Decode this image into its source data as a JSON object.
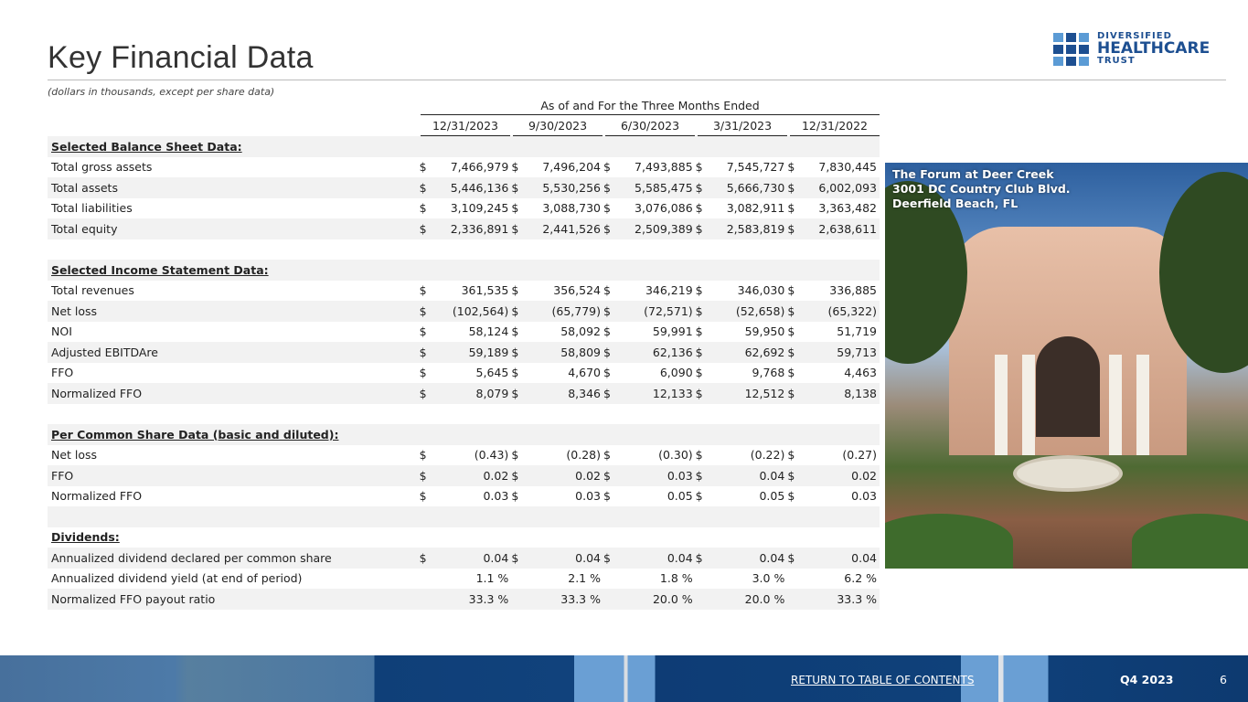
{
  "header": {
    "title": "Key Financial Data",
    "subtitle": "(dollars in thousands, except per share data)",
    "logo": {
      "line1": "DIVERSIFIED",
      "line2": "HEALTHCARE",
      "line3": "TRUST",
      "colors": {
        "light": "#5b9bd5",
        "dark": "#1d4f91"
      }
    }
  },
  "table": {
    "span_header": "As of and For the Three Months Ended",
    "dates": [
      "12/31/2023",
      "9/30/2023",
      "6/30/2023",
      "3/31/2023",
      "12/31/2022"
    ],
    "rows": [
      {
        "type": "header",
        "label": "Selected Balance Sheet Data:"
      },
      {
        "label": "Total gross assets",
        "cur": "$",
        "values": [
          "7,466,979",
          "7,496,204",
          "7,493,885",
          "7,545,727",
          "7,830,445"
        ]
      },
      {
        "label": "Total assets",
        "cur": "$",
        "values": [
          "5,446,136",
          "5,530,256",
          "5,585,475",
          "5,666,730",
          "6,002,093"
        ]
      },
      {
        "label": "Total liabilities",
        "cur": "$",
        "values": [
          "3,109,245",
          "3,088,730",
          "3,076,086",
          "3,082,911",
          "3,363,482"
        ]
      },
      {
        "label": "Total equity",
        "cur": "$",
        "values": [
          "2,336,891",
          "2,441,526",
          "2,509,389",
          "2,583,819",
          "2,638,611"
        ]
      },
      {
        "type": "blank"
      },
      {
        "type": "header",
        "label": "Selected Income Statement Data:"
      },
      {
        "label": "Total revenues",
        "cur": "$",
        "values": [
          "361,535",
          "356,524",
          "346,219",
          "346,030",
          "336,885"
        ]
      },
      {
        "label": "Net loss",
        "cur": "$",
        "values": [
          "(102,564)",
          "(65,779)",
          "(72,571)",
          "(52,658)",
          "(65,322)"
        ]
      },
      {
        "label": "NOI",
        "cur": "$",
        "values": [
          "58,124",
          "58,092",
          "59,991",
          "59,950",
          "51,719"
        ]
      },
      {
        "label": "Adjusted EBITDAre",
        "cur": "$",
        "values": [
          "59,189",
          "58,809",
          "62,136",
          "62,692",
          "59,713"
        ]
      },
      {
        "label": "FFO",
        "cur": "$",
        "values": [
          "5,645",
          "4,670",
          "6,090",
          "9,768",
          "4,463"
        ]
      },
      {
        "label": "Normalized FFO",
        "cur": "$",
        "values": [
          "8,079",
          "8,346",
          "12,133",
          "12,512",
          "8,138"
        ]
      },
      {
        "type": "blank"
      },
      {
        "type": "header",
        "label": "Per Common Share Data (basic and diluted):"
      },
      {
        "label": "Net loss",
        "cur": "$",
        "values": [
          "(0.43)",
          "(0.28)",
          "(0.30)",
          "(0.22)",
          "(0.27)"
        ]
      },
      {
        "label": "FFO",
        "cur": "$",
        "values": [
          "0.02",
          "0.02",
          "0.03",
          "0.04",
          "0.02"
        ]
      },
      {
        "label": "Normalized FFO",
        "cur": "$",
        "values": [
          "0.03",
          "0.03",
          "0.05",
          "0.05",
          "0.03"
        ]
      },
      {
        "type": "blank"
      },
      {
        "type": "header",
        "label": "Dividends:"
      },
      {
        "label": "Annualized dividend declared per common share",
        "cur": "$",
        "values": [
          "0.04",
          "0.04",
          "0.04",
          "0.04",
          "0.04"
        ]
      },
      {
        "label": "Annualized dividend yield (at end of period)",
        "cur": "",
        "values": [
          "1.1 %",
          "2.1 %",
          "1.8 %",
          "3.0 %",
          "6.2 %"
        ]
      },
      {
        "label": "Normalized FFO payout ratio",
        "cur": "",
        "values": [
          "33.3 %",
          "33.3 %",
          "20.0 %",
          "20.0 %",
          "33.3 %"
        ]
      }
    ]
  },
  "photo": {
    "caption": [
      "The Forum at Deer Creek",
      "3001 DC Country Club Blvd.",
      "Deerfield Beach, FL"
    ]
  },
  "footer": {
    "link": "RETURN TO TABLE OF CONTENTS",
    "period": "Q4 2023",
    "page": "6"
  }
}
